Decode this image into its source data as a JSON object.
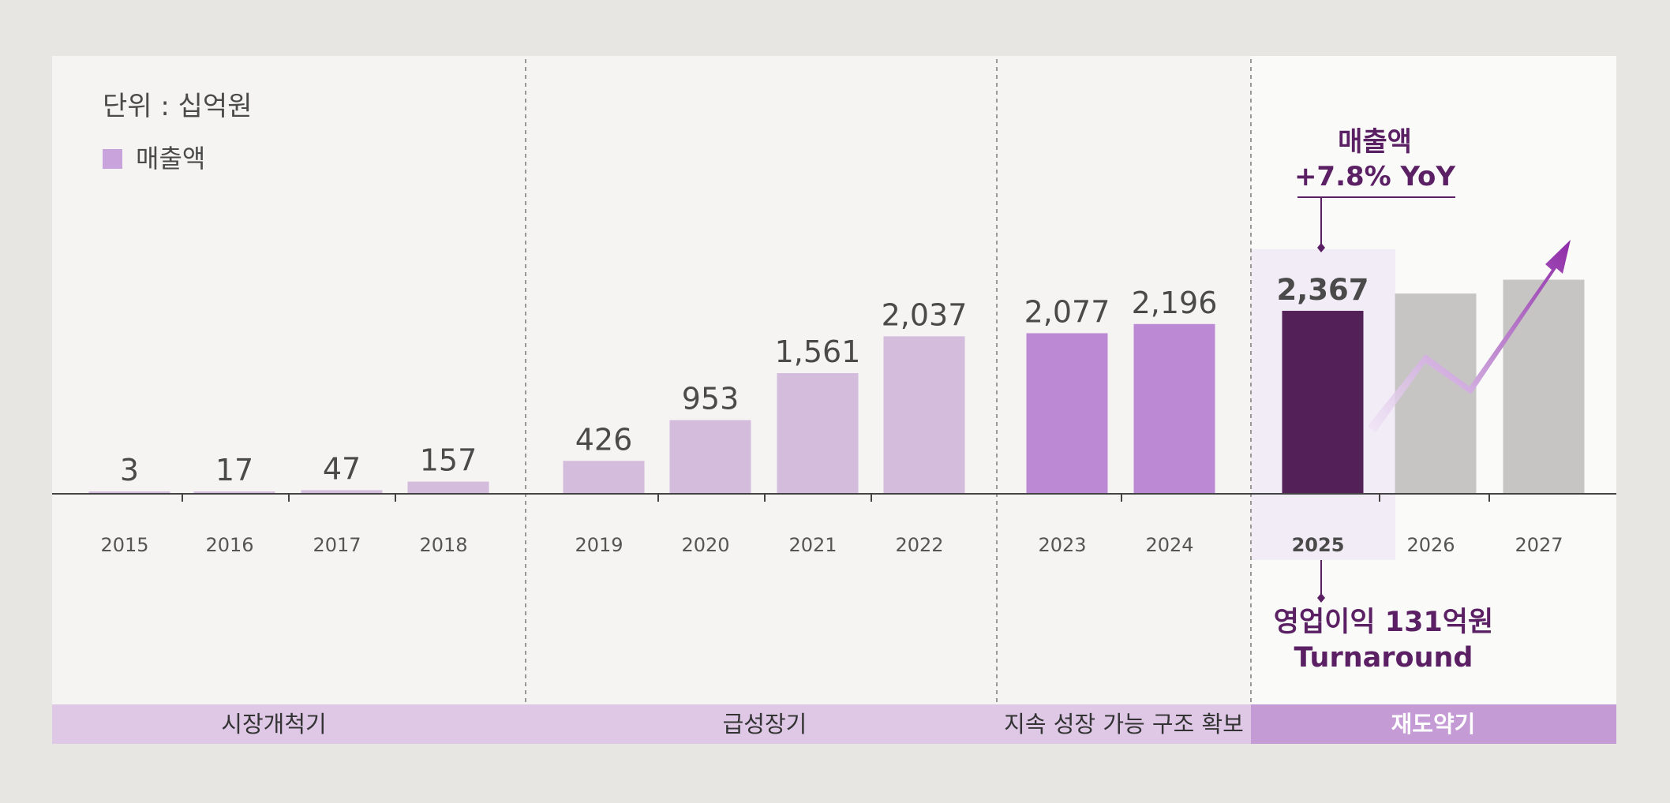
{
  "unit_label": "단위 : 십억원",
  "legend": {
    "label": "매출액",
    "color": "#c9a3dc"
  },
  "colors": {
    "panel_bg": "#f5f4f2",
    "panel_bg_last": "#fafaf9",
    "bar_light": "#d4bcdd",
    "bar_mid": "#bc8ad4",
    "bar_dark": "#532158",
    "bar_forecast": "#c6c5c4",
    "highlight_bg": "#f2ecf6",
    "accent_text": "#5b1f63",
    "phase_bg": "#dec8e6",
    "phase_bg_active": "#c59bd6"
  },
  "phases": [
    {
      "label": "시장개척기",
      "active": false
    },
    {
      "label": "급성장기",
      "active": false
    },
    {
      "label": "지속 성장 가능 구조 확보",
      "active": false
    },
    {
      "label": "재도약기",
      "active": true
    }
  ],
  "annotations": {
    "top": [
      "매출액",
      "+7.8% YoY"
    ],
    "bottom": [
      "영업이익 131억원",
      "Turnaround"
    ]
  },
  "chart_data": {
    "type": "bar",
    "title": "",
    "xlabel": "",
    "ylabel": "",
    "unit": "십억원",
    "categories": [
      "2015",
      "2016",
      "2017",
      "2018",
      "2019",
      "2020",
      "2021",
      "2022",
      "2023",
      "2024",
      "2025",
      "2026",
      "2027"
    ],
    "series": [
      {
        "name": "매출액",
        "values": [
          3,
          17,
          47,
          157,
          426,
          953,
          1561,
          2037,
          2077,
          2196,
          2367,
          2590,
          2770
        ],
        "value_labels": [
          "3",
          "17",
          "47",
          "157",
          "426",
          "953",
          "1,561",
          "2,037",
          "2,077",
          "2,196",
          "2,367",
          "",
          ""
        ],
        "styles": [
          "light",
          "light",
          "light",
          "light",
          "light",
          "light",
          "light",
          "light",
          "mid",
          "mid",
          "dark",
          "forecast",
          "forecast"
        ]
      }
    ],
    "highlight_category": "2025",
    "ylim": [
      0,
      3150
    ],
    "grid": false,
    "legend_position": "top-left",
    "trend_arrow": true
  }
}
